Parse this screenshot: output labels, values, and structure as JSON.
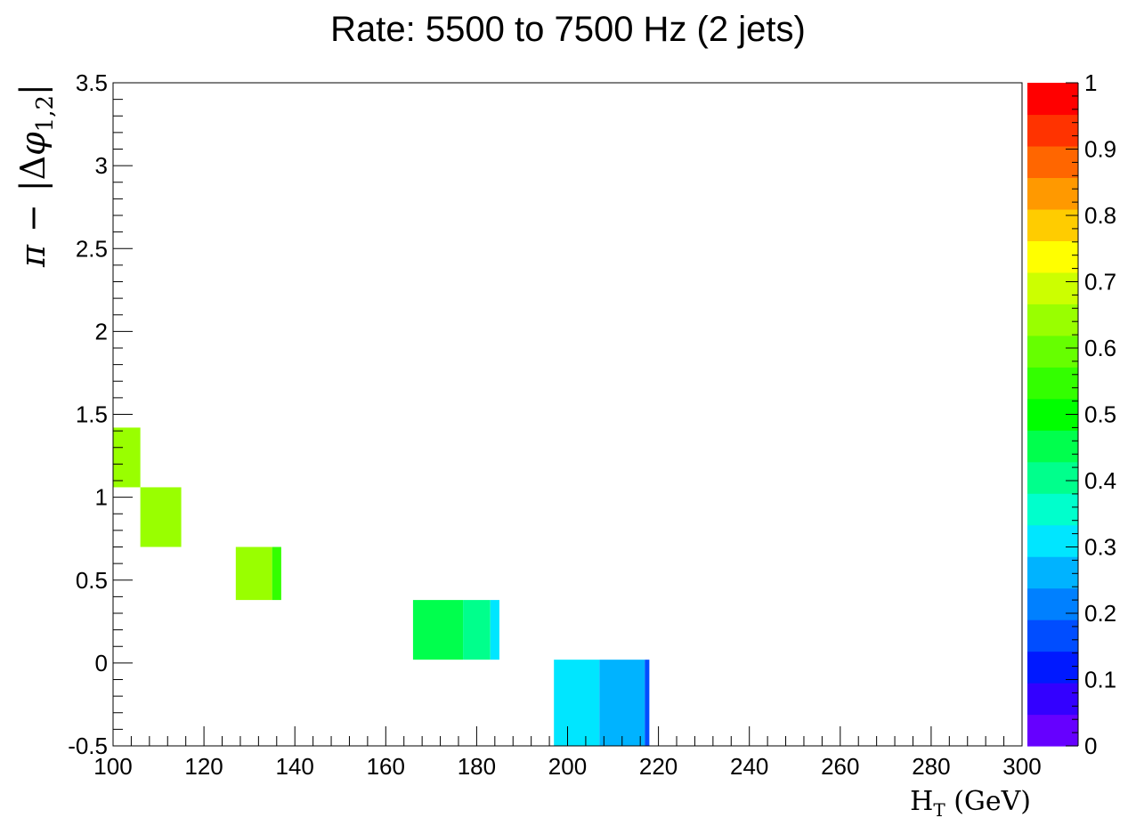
{
  "chart_data": {
    "type": "heatmap",
    "title": "Rate: 5500 to 7500 Hz (2 jets)",
    "xlabel": "H_T (GeV)",
    "ylabel": "π − |Δφ_{1,2}|",
    "xlim": [
      100,
      300
    ],
    "ylim": [
      -0.5,
      3.5
    ],
    "zlim": [
      0,
      1
    ],
    "x_ticks": [
      "100",
      "120",
      "140",
      "160",
      "180",
      "200",
      "220",
      "240",
      "260",
      "280",
      "300"
    ],
    "y_ticks": [
      "-0.5",
      "0",
      "0.5",
      "1",
      "1.5",
      "2",
      "2.5",
      "3",
      "3.5"
    ],
    "z_ticks": [
      "0",
      "0.1",
      "0.2",
      "0.3",
      "0.4",
      "0.5",
      "0.6",
      "0.7",
      "0.8",
      "0.9",
      "1"
    ],
    "palette": [
      "#6600ff",
      "#3300ff",
      "#0019ff",
      "#004dff",
      "#0080ff",
      "#00b3ff",
      "#00e6ff",
      "#00ffcc",
      "#00ff8c",
      "#00ff4d",
      "#00ff00",
      "#33ff00",
      "#66ff00",
      "#99ff00",
      "#ccff00",
      "#ffff00",
      "#ffcc00",
      "#ff9900",
      "#ff6600",
      "#ff3300",
      "#ff0000"
    ],
    "cells": [
      {
        "x": [
          100,
          106
        ],
        "y": [
          1.06,
          1.42
        ],
        "z": 0.62
      },
      {
        "x": [
          106,
          115
        ],
        "y": [
          0.7,
          1.06
        ],
        "z": 0.62
      },
      {
        "x": [
          127,
          135
        ],
        "y": [
          0.38,
          0.7
        ],
        "z": 0.62
      },
      {
        "x": [
          135,
          137
        ],
        "y": [
          0.38,
          0.7
        ],
        "z": 0.57
      },
      {
        "x": [
          166,
          177
        ],
        "y": [
          0.02,
          0.38
        ],
        "z": 0.44
      },
      {
        "x": [
          177,
          183
        ],
        "y": [
          0.02,
          0.38
        ],
        "z": 0.39
      },
      {
        "x": [
          183,
          185
        ],
        "y": [
          0.02,
          0.38
        ],
        "z": 0.33
      },
      {
        "x": [
          197,
          207
        ],
        "y": [
          -0.5,
          0.02
        ],
        "z": 0.29
      },
      {
        "x": [
          207,
          217
        ],
        "y": [
          -0.5,
          0.02
        ],
        "z": 0.24
      },
      {
        "x": [
          217,
          218
        ],
        "y": [
          -0.5,
          0.02
        ],
        "z": 0.19
      }
    ]
  }
}
